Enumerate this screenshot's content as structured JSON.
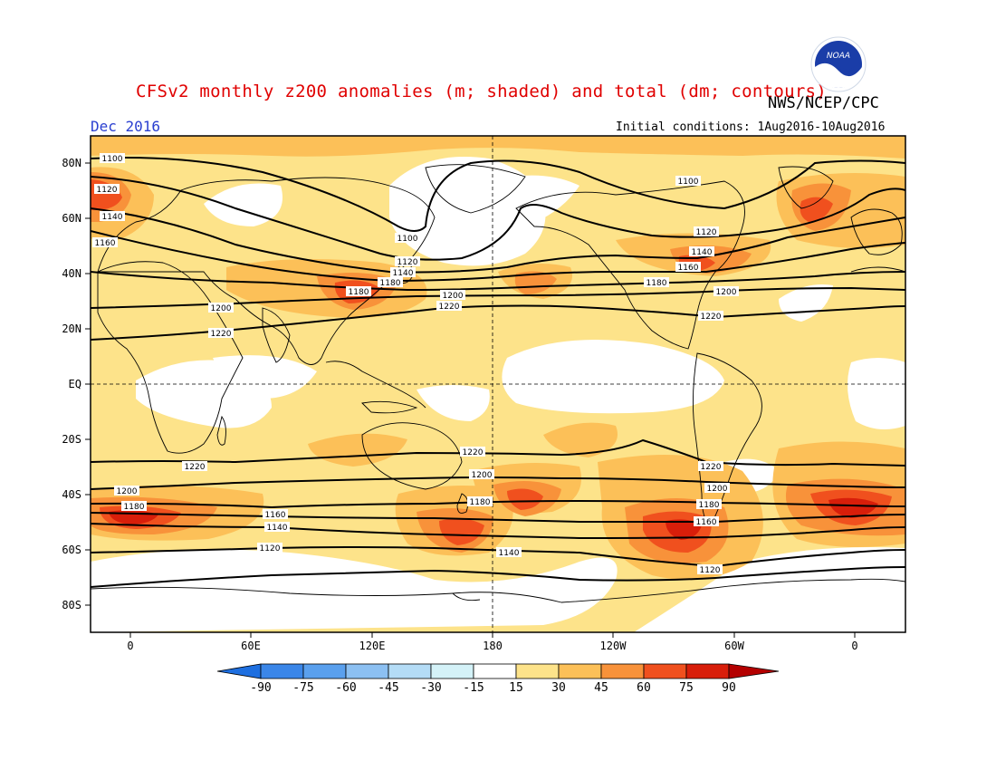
{
  "header": {
    "title": "CFSv2 monthly z200 anomalies (m; shaded) and total (dm; contours)",
    "agency": "NWS/NCEP/CPC",
    "month": "Dec 2016",
    "initial_conditions": "Initial conditions: 1Aug2016-10Aug2016"
  },
  "logo": {
    "text": "NOAA"
  },
  "axes": {
    "lat_labels": [
      "80N",
      "60N",
      "40N",
      "20N",
      "EQ",
      "20S",
      "40S",
      "60S",
      "80S"
    ],
    "lon_labels": [
      "0",
      "60E",
      "120E",
      "180",
      "120W",
      "60W",
      "0"
    ]
  },
  "colorbar": {
    "labels": [
      "-90",
      "-75",
      "-60",
      "-45",
      "-30",
      "-15",
      "15",
      "30",
      "45",
      "60",
      "75",
      "90"
    ],
    "colors": [
      "#1e6fe0",
      "#3a86e8",
      "#5aa0ee",
      "#8cc0f2",
      "#b4dcf6",
      "#d4f2f8",
      "#ffffff",
      "#fde38a",
      "#fcc058",
      "#f8923a",
      "#f0501e",
      "#d81e0a",
      "#b40000"
    ]
  },
  "contours": {
    "labels": [
      "1100",
      "1120",
      "1140",
      "1160",
      "1180",
      "1200",
      "1220"
    ]
  }
}
